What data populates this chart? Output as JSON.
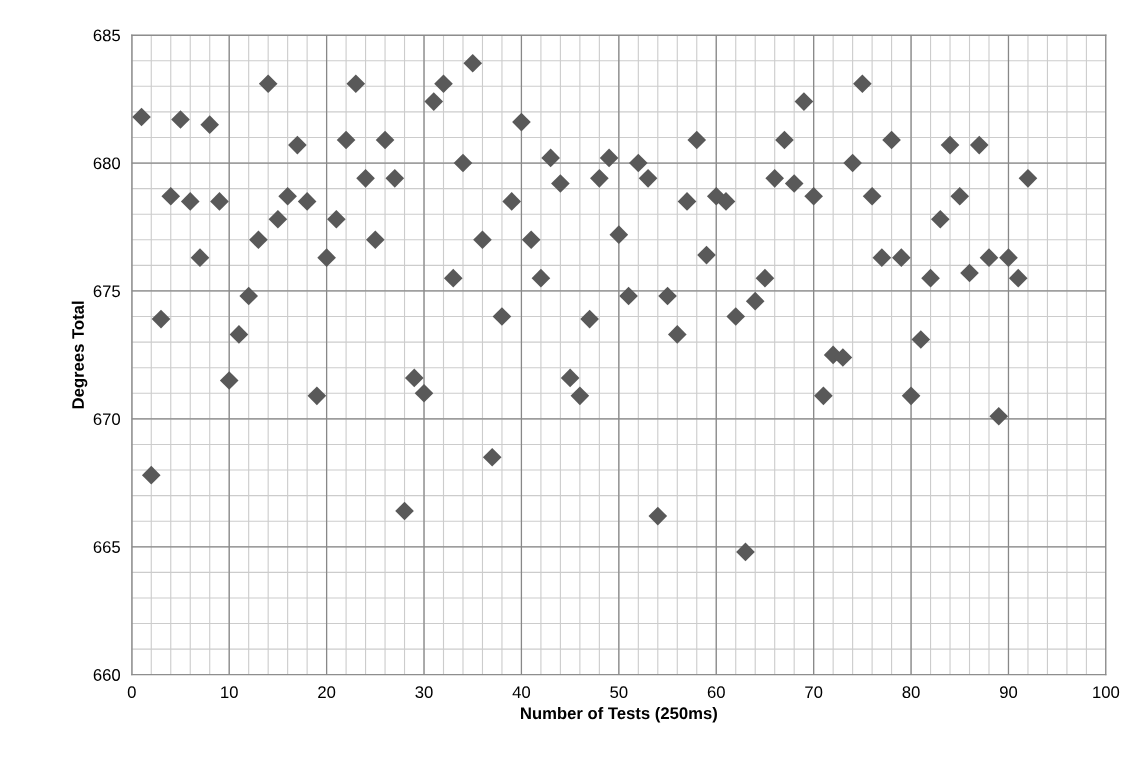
{
  "chart_data": {
    "type": "scatter",
    "xlabel": "Number of Tests (250ms)",
    "ylabel": "Degrees Total",
    "x": [
      1,
      2,
      3,
      4,
      5,
      6,
      7,
      8,
      9,
      10,
      11,
      12,
      13,
      14,
      15,
      16,
      17,
      18,
      19,
      20,
      21,
      22,
      23,
      24,
      25,
      26,
      27,
      28,
      29,
      30,
      31,
      32,
      33,
      34,
      35,
      36,
      37,
      38,
      39,
      40,
      41,
      42,
      43,
      44,
      45,
      46,
      47,
      48,
      49,
      50,
      51,
      52,
      53,
      54,
      55,
      56,
      57,
      58,
      59,
      60,
      61,
      62,
      63,
      64,
      65,
      66,
      67,
      68,
      69,
      70,
      71,
      72,
      73,
      74,
      75,
      76,
      77,
      78,
      79,
      80,
      81,
      82,
      83,
      84,
      85,
      86,
      87,
      88,
      89,
      90,
      91,
      92
    ],
    "series": [
      {
        "color": "#595959",
        "values": [
          681.8,
          667.8,
          673.9,
          678.7,
          681.7,
          678.5,
          676.3,
          681.5,
          678.5,
          671.5,
          673.3,
          674.8,
          677.0,
          683.1,
          677.8,
          678.7,
          680.7,
          678.5,
          670.9,
          676.3,
          677.8,
          680.9,
          683.1,
          679.4,
          677.0,
          680.9,
          679.4,
          666.4,
          671.6,
          671.0,
          682.4,
          683.1,
          675.5,
          680.0,
          683.9,
          677.0,
          668.5,
          674.0,
          678.5,
          681.6,
          677.0,
          675.5,
          680.2,
          679.2,
          671.6,
          670.9,
          673.9,
          679.4,
          680.2,
          677.2,
          674.8,
          680.0,
          679.4,
          666.2,
          674.8,
          673.3,
          678.5,
          680.9,
          676.4,
          678.7,
          678.5,
          674.0,
          664.8,
          674.6,
          675.5,
          679.4,
          680.9,
          679.2,
          682.4,
          678.7,
          670.9,
          672.5,
          672.4,
          680.0,
          683.1,
          678.7,
          676.3,
          680.9,
          676.3,
          670.9,
          673.1,
          675.5,
          677.8,
          680.7,
          678.7,
          675.7,
          680.7,
          676.3,
          670.1,
          676.3,
          675.5,
          679.4
        ]
      }
    ],
    "xlim": [
      0,
      100
    ],
    "xticks": [
      0,
      10,
      20,
      30,
      40,
      50,
      60,
      70,
      80,
      90,
      100
    ],
    "ylim": [
      660,
      685
    ],
    "yticks": [
      660,
      665,
      670,
      675,
      680,
      685
    ],
    "grid": true,
    "marker": "diamond",
    "legend": false
  }
}
